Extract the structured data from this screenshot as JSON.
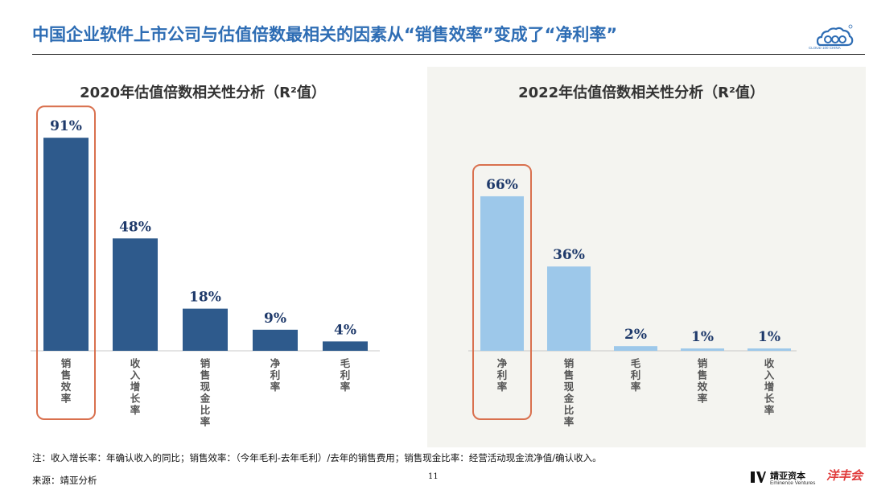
{
  "header": {
    "title": "中国企业软件上市公司与估值倍数最相关的因素从“销售效率”变成了“净利率”",
    "logo_text": "CLOUD 100 CHINA"
  },
  "colors": {
    "title_blue": "#2e6db4",
    "bar_2020": "#2e5a8c",
    "bar_2022": "#9dc8ea",
    "value_label": "#1f3a6b",
    "highlight": "#d9704e"
  },
  "chart_data": [
    {
      "type": "bar",
      "title": "2020年估值倍数相关性分析（R²值）",
      "categories": [
        "销售效率",
        "收入增长率",
        "销售现金比率",
        "净利率",
        "毛利率"
      ],
      "values": [
        91,
        48,
        18,
        9,
        4
      ],
      "value_labels": [
        "91%",
        "48%",
        "18%",
        "9%",
        "4%"
      ],
      "unit": "%",
      "ylim": [
        0,
        100
      ],
      "grid": false,
      "highlight_category": "销售效率"
    },
    {
      "type": "bar",
      "title": "2022年估值倍数相关性分析（R²值）",
      "categories": [
        "净利率",
        "销售现金比率",
        "毛利率",
        "销售效率",
        "收入增长率"
      ],
      "values": [
        66,
        36,
        2,
        1,
        1
      ],
      "value_labels": [
        "66%",
        "36%",
        "2%",
        "1%",
        "1%"
      ],
      "unit": "%",
      "ylim": [
        0,
        100
      ],
      "grid": false,
      "highlight_category": "净利率"
    }
  ],
  "footer": {
    "note": "注：收入增长率：年确认收入的同比；销售效率：（今年毛利-去年毛利）/去年的销售费用；销售现金比率：经营活动现金流净值/确认收入。",
    "source": "来源：靖亚分析",
    "page_number": "11",
    "brand_cn": "靖亚资本",
    "brand_en": "Eminence Ventures",
    "brand2": "洋丰会"
  }
}
